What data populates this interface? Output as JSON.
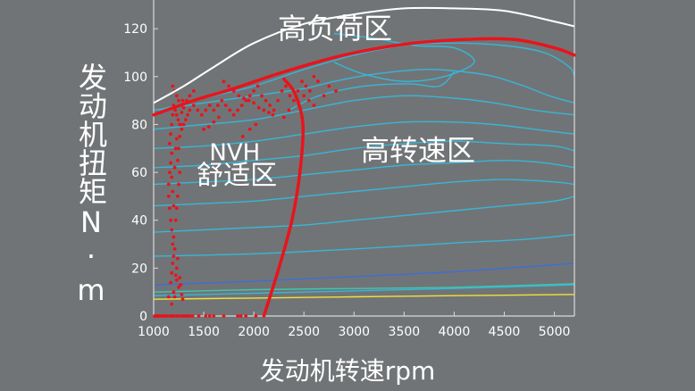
{
  "chart_data": {
    "type": "scatter",
    "xlabel": "发动机转速rpm",
    "ylabel": "发动机扭矩N·m",
    "xlim": [
      1000,
      5200
    ],
    "ylim": [
      0,
      132
    ],
    "xticks": [
      1000,
      1500,
      2000,
      2500,
      3000,
      3500,
      4000,
      4500,
      5000
    ],
    "yticks": [
      0,
      20,
      40,
      60,
      80,
      100,
      120
    ],
    "grid": false,
    "annotations": [
      {
        "id": "high-load",
        "text": "高负荷区",
        "x": 2810,
        "y": 116
      },
      {
        "id": "nvh-1",
        "text": "NVH",
        "x": 1810,
        "y": 65
      },
      {
        "id": "nvh-2",
        "text": "舒适区",
        "x": 1830,
        "y": 55
      },
      {
        "id": "high-speed",
        "text": "高转速区",
        "x": 3640,
        "y": 65
      }
    ],
    "colors": {
      "background": "#717476",
      "boundary": "#ffffff",
      "region": "#e8141c",
      "points": "#e8141c",
      "contour_cyan": "#37b6d8",
      "contour_teal": "#3ec7b0",
      "contour_blue": "#3a6fd8",
      "contour_yellow": "#f1e23a"
    },
    "max_torque_curve": [
      [
        1000,
        89
      ],
      [
        1300,
        96
      ],
      [
        1600,
        104
      ],
      [
        2000,
        114
      ],
      [
        2500,
        122
      ],
      [
        3000,
        126
      ],
      [
        3500,
        128.5
      ],
      [
        4000,
        128.5
      ],
      [
        4500,
        127.5
      ],
      [
        5000,
        123
      ],
      [
        5200,
        121
      ]
    ],
    "region_boundaries": {
      "high_load_line": [
        [
          1000,
          84
        ],
        [
          1400,
          90
        ],
        [
          1800,
          95
        ],
        [
          2300,
          102
        ],
        [
          2900,
          109
        ],
        [
          3500,
          113.5
        ],
        [
          4100,
          115.5
        ],
        [
          4600,
          115.5
        ],
        [
          5000,
          112
        ],
        [
          5200,
          109
        ]
      ],
      "nvh_boundary": [
        [
          2100,
          0
        ],
        [
          2250,
          20
        ],
        [
          2380,
          40
        ],
        [
          2460,
          60
        ],
        [
          2490,
          80
        ],
        [
          2410,
          93
        ],
        [
          2300,
          99
        ]
      ]
    },
    "contours": [
      {
        "color": "#37b6d8",
        "points": [
          [
            1000,
            8.5
          ],
          [
            2000,
            9.5
          ],
          [
            3000,
            10.5
          ],
          [
            4000,
            11.5
          ],
          [
            5200,
            13
          ]
        ]
      },
      {
        "color": "#3a6fd8",
        "points": [
          [
            1000,
            13
          ],
          [
            2000,
            14.5
          ],
          [
            3000,
            16.5
          ],
          [
            4000,
            18.5
          ],
          [
            5200,
            22
          ]
        ]
      },
      {
        "color": "#37b6d8",
        "points": [
          [
            1000,
            25
          ],
          [
            2000,
            26
          ],
          [
            3000,
            28
          ],
          [
            4000,
            30.5
          ],
          [
            4700,
            32
          ],
          [
            5200,
            34
          ]
        ]
      },
      {
        "color": "#37b6d8",
        "points": [
          [
            1000,
            35
          ],
          [
            1500,
            36
          ],
          [
            2000,
            37
          ],
          [
            2500,
            38
          ],
          [
            3000,
            40
          ],
          [
            3500,
            42
          ],
          [
            4000,
            44
          ],
          [
            4500,
            46
          ],
          [
            5000,
            48
          ],
          [
            5200,
            50
          ]
        ]
      },
      {
        "color": "#37b6d8",
        "points": [
          [
            1000,
            46
          ],
          [
            1500,
            47
          ],
          [
            2000,
            48
          ],
          [
            2500,
            50
          ],
          [
            3000,
            52
          ],
          [
            3500,
            54
          ],
          [
            4000,
            56
          ],
          [
            4500,
            57
          ],
          [
            5000,
            56
          ],
          [
            5200,
            55
          ]
        ]
      },
      {
        "color": "#37b6d8",
        "points": [
          [
            1000,
            55
          ],
          [
            1500,
            56
          ],
          [
            2000,
            57
          ],
          [
            2500,
            59
          ],
          [
            3000,
            61
          ],
          [
            3500,
            63
          ],
          [
            4000,
            64
          ],
          [
            4500,
            65
          ],
          [
            4900,
            64
          ],
          [
            5200,
            62
          ]
        ]
      },
      {
        "color": "#37b6d8",
        "points": [
          [
            1000,
            62
          ],
          [
            1500,
            63
          ],
          [
            2000,
            65
          ],
          [
            2500,
            67
          ],
          [
            3000,
            70
          ],
          [
            3500,
            72
          ],
          [
            4000,
            73
          ],
          [
            4500,
            72
          ],
          [
            5000,
            71
          ],
          [
            5200,
            69
          ]
        ]
      },
      {
        "color": "#37b6d8",
        "points": [
          [
            1000,
            70
          ],
          [
            1500,
            71
          ],
          [
            2000,
            73
          ],
          [
            2500,
            76
          ],
          [
            3000,
            79
          ],
          [
            3500,
            81
          ],
          [
            4000,
            81
          ],
          [
            4400,
            80
          ],
          [
            4800,
            78
          ],
          [
            5200,
            76
          ]
        ]
      },
      {
        "color": "#37b6d8",
        "points": [
          [
            1000,
            78
          ],
          [
            1500,
            80
          ],
          [
            2000,
            82
          ],
          [
            2500,
            86
          ],
          [
            3000,
            90
          ],
          [
            3500,
            92
          ],
          [
            4000,
            91
          ],
          [
            4400,
            89
          ],
          [
            4800,
            86
          ],
          [
            5200,
            84
          ]
        ]
      },
      {
        "color": "#37b6d8",
        "points": [
          [
            1000,
            86
          ],
          [
            1500,
            89
          ],
          [
            2000,
            92
          ],
          [
            2500,
            95
          ],
          [
            2800,
            98
          ],
          [
            3200,
            101
          ],
          [
            3700,
            103
          ],
          [
            4100,
            102
          ],
          [
            4400,
            100
          ],
          [
            4700,
            96
          ],
          [
            4950,
            92
          ],
          [
            5200,
            89
          ]
        ]
      },
      {
        "color": "#37b6d8",
        "points": [
          [
            1050,
            86
          ],
          [
            1500,
            91
          ],
          [
            2000,
            96
          ],
          [
            2500,
            103
          ],
          [
            3000,
            109
          ],
          [
            3500,
            113
          ],
          [
            4000,
            114
          ],
          [
            4500,
            113
          ],
          [
            4900,
            110
          ],
          [
            5150,
            104
          ],
          [
            5200,
            100
          ]
        ]
      },
      {
        "color": "#37b6d8",
        "points": [
          [
            2800,
            118
          ],
          [
            3200,
            116
          ],
          [
            3600,
            113
          ],
          [
            4000,
            112
          ],
          [
            4200,
            106
          ],
          [
            3900,
            100
          ],
          [
            3500,
            98
          ],
          [
            3100,
            101
          ],
          [
            2800,
            106
          ]
        ]
      },
      {
        "color": "#37b6d8",
        "points": [
          [
            2350,
            86
          ],
          [
            2650,
            92
          ],
          [
            3100,
            96
          ],
          [
            3550,
            97
          ],
          [
            3850,
            96
          ],
          [
            4000,
            102
          ]
        ]
      },
      {
        "color": "#3ec7b0",
        "points": [
          [
            1000,
            10
          ],
          [
            2000,
            11
          ],
          [
            3000,
            11.5
          ],
          [
            4000,
            12
          ],
          [
            5200,
            13.5
          ]
        ]
      },
      {
        "color": "#f1e23a",
        "points": [
          [
            1000,
            7
          ],
          [
            2000,
            7.5
          ],
          [
            3000,
            8
          ],
          [
            4000,
            8.5
          ],
          [
            5200,
            9
          ]
        ]
      }
    ],
    "points": [
      [
        1010,
        0
      ],
      [
        1020,
        0
      ],
      [
        1030,
        0
      ],
      [
        1040,
        0
      ],
      [
        1050,
        0
      ],
      [
        1060,
        0
      ],
      [
        1080,
        0
      ],
      [
        1100,
        0
      ],
      [
        1110,
        0
      ],
      [
        1130,
        0
      ],
      [
        1160,
        0
      ],
      [
        1180,
        0
      ],
      [
        1200,
        0
      ],
      [
        1230,
        0
      ],
      [
        1250,
        0
      ],
      [
        1280,
        0
      ],
      [
        1300,
        0
      ],
      [
        1320,
        0
      ],
      [
        1340,
        0
      ],
      [
        1360,
        0
      ],
      [
        1390,
        0
      ],
      [
        1450,
        0
      ],
      [
        1520,
        0
      ],
      [
        1560,
        0
      ],
      [
        1600,
        0
      ],
      [
        1700,
        0
      ],
      [
        1840,
        0
      ],
      [
        1870,
        0
      ],
      [
        1920,
        0
      ],
      [
        2020,
        0
      ],
      [
        1150,
        8
      ],
      [
        1170,
        14
      ],
      [
        1180,
        18
      ],
      [
        1190,
        22
      ],
      [
        1200,
        25
      ],
      [
        1210,
        28
      ],
      [
        1220,
        17
      ],
      [
        1230,
        20
      ],
      [
        1240,
        24
      ],
      [
        1260,
        16
      ],
      [
        1270,
        13
      ],
      [
        1280,
        9
      ],
      [
        1290,
        7
      ],
      [
        1250,
        12
      ],
      [
        1230,
        15
      ],
      [
        1190,
        30
      ],
      [
        1200,
        33
      ],
      [
        1180,
        36
      ],
      [
        1170,
        40
      ],
      [
        1160,
        45
      ],
      [
        1150,
        50
      ],
      [
        1150,
        55
      ],
      [
        1160,
        60
      ],
      [
        1170,
        64
      ],
      [
        1180,
        68
      ],
      [
        1160,
        72
      ],
      [
        1170,
        76
      ],
      [
        1180,
        80
      ],
      [
        1190,
        84
      ],
      [
        1200,
        88
      ],
      [
        1215,
        86
      ],
      [
        1230,
        84
      ],
      [
        1245,
        82
      ],
      [
        1260,
        80
      ],
      [
        1280,
        78
      ],
      [
        1300,
        80
      ],
      [
        1320,
        82
      ],
      [
        1340,
        84
      ],
      [
        1360,
        86
      ],
      [
        1400,
        88
      ],
      [
        1440,
        86
      ],
      [
        1480,
        84
      ],
      [
        1520,
        86
      ],
      [
        1560,
        88
      ],
      [
        1600,
        86
      ],
      [
        1640,
        88
      ],
      [
        1680,
        90
      ],
      [
        1720,
        88
      ],
      [
        1760,
        86
      ],
      [
        1800,
        84
      ],
      [
        1840,
        86
      ],
      [
        1880,
        88
      ],
      [
        1920,
        90
      ],
      [
        1960,
        92
      ],
      [
        2000,
        94
      ],
      [
        2040,
        96
      ],
      [
        2080,
        92
      ],
      [
        2120,
        90
      ],
      [
        2160,
        88
      ],
      [
        2200,
        86
      ],
      [
        2240,
        90
      ],
      [
        2280,
        94
      ],
      [
        2320,
        96
      ],
      [
        2360,
        92
      ],
      [
        2400,
        90
      ],
      [
        2440,
        94
      ],
      [
        2480,
        98
      ],
      [
        2520,
        96
      ],
      [
        2560,
        94
      ],
      [
        2600,
        100
      ],
      [
        2640,
        98
      ],
      [
        2700,
        92
      ],
      [
        2750,
        96
      ],
      [
        2820,
        94
      ],
      [
        1190,
        96
      ],
      [
        1210,
        94
      ],
      [
        1230,
        92
      ],
      [
        1250,
        90
      ],
      [
        1270,
        88
      ],
      [
        1300,
        87
      ],
      [
        1330,
        90
      ],
      [
        1360,
        92
      ],
      [
        1400,
        94
      ],
      [
        1700,
        98
      ],
      [
        1750,
        96
      ],
      [
        1800,
        94
      ],
      [
        1850,
        92
      ],
      [
        1900,
        91
      ],
      [
        1950,
        90
      ],
      [
        2000,
        89
      ],
      [
        2050,
        87
      ],
      [
        2100,
        86
      ],
      [
        2150,
        85
      ],
      [
        2190,
        84
      ],
      [
        1200,
        10
      ],
      [
        1210,
        8
      ],
      [
        1180,
        5
      ],
      [
        1220,
        40
      ],
      [
        1230,
        45
      ],
      [
        1240,
        50
      ],
      [
        1250,
        55
      ],
      [
        1260,
        60
      ],
      [
        1240,
        65
      ],
      [
        1250,
        70
      ],
      [
        1260,
        75
      ],
      [
        1270,
        80
      ],
      [
        1280,
        85
      ],
      [
        1290,
        90
      ],
      [
        1200,
        46
      ],
      [
        1190,
        52
      ],
      [
        1180,
        58
      ],
      [
        1210,
        62
      ],
      [
        1220,
        70
      ],
      [
        1230,
        74
      ],
      [
        2300,
        83
      ],
      [
        2350,
        86
      ],
      [
        2450,
        88
      ],
      [
        2500,
        92
      ],
      [
        2550,
        90
      ],
      [
        2600,
        88
      ],
      [
        1890,
        75
      ],
      [
        1960,
        78
      ],
      [
        2020,
        80
      ],
      [
        1550,
        79
      ],
      [
        1600,
        81
      ],
      [
        1650,
        83
      ],
      [
        1500,
        78
      ]
    ]
  }
}
